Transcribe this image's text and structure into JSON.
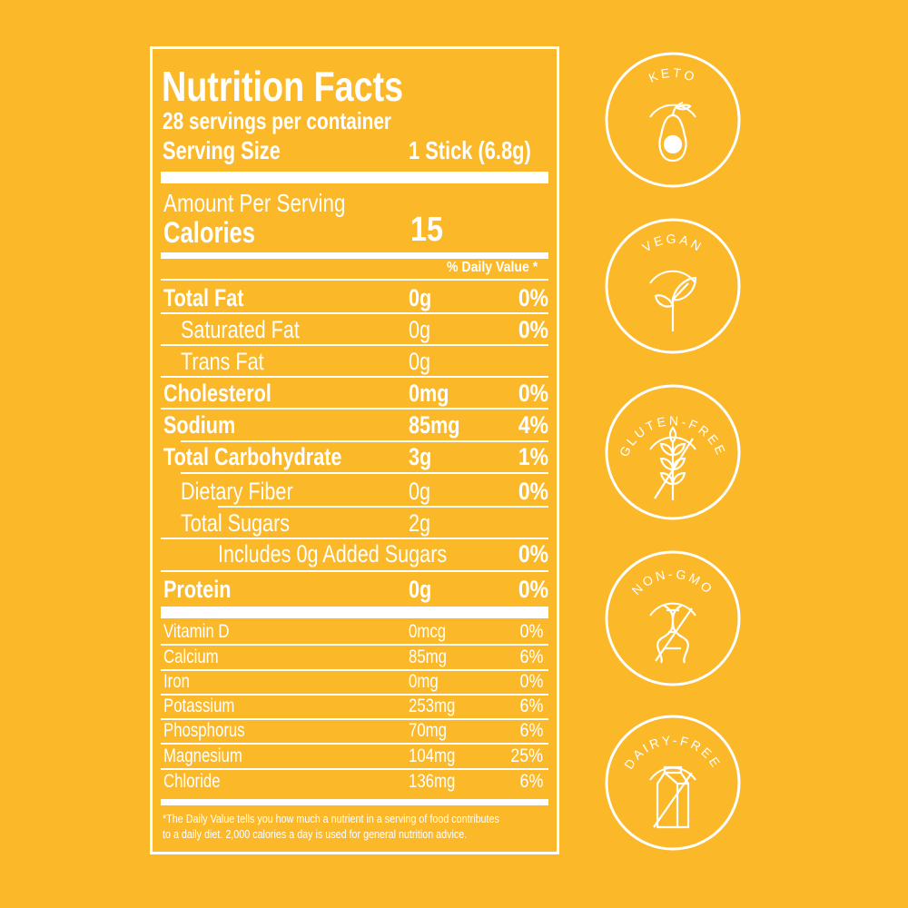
{
  "colors": {
    "background": "#FBB829",
    "foreground": "#FFFFFF"
  },
  "label": {
    "title": "Nutrition Facts",
    "servings": "28 servings per container",
    "serving_size_label": "Serving Size",
    "serving_size_value": "1 Stick (6.8g)",
    "amount_per_serving": "Amount Per Serving",
    "calories_label": "Calories",
    "calories_value": "15",
    "dv_header": "% Daily Value *",
    "nutrients": [
      {
        "name": "Total Fat",
        "amount": "0g",
        "dv": "0%"
      },
      {
        "name": "Saturated Fat",
        "amount": "0g",
        "dv": "0%"
      },
      {
        "name": "Trans Fat",
        "amount": "0g",
        "dv": ""
      },
      {
        "name": "Cholesterol",
        "amount": "0mg",
        "dv": "0%"
      },
      {
        "name": "Sodium",
        "amount": "85mg",
        "dv": "4%"
      },
      {
        "name": "Total Carbohydrate",
        "amount": "3g",
        "dv": "1%"
      },
      {
        "name": "Dietary Fiber",
        "amount": "0g",
        "dv": "0%"
      },
      {
        "name": "Total Sugars",
        "amount": "2g",
        "dv": ""
      },
      {
        "name": "Includes 0g Added Sugars",
        "amount": "",
        "dv": "0%"
      },
      {
        "name": "Protein",
        "amount": "0g",
        "dv": "0%"
      }
    ],
    "minerals": [
      {
        "name": "Vitamin D",
        "amount": "0mcg",
        "dv": "0%"
      },
      {
        "name": "Calcium",
        "amount": "85mg",
        "dv": "6%"
      },
      {
        "name": "Iron",
        "amount": "0mg",
        "dv": "0%"
      },
      {
        "name": "Potassium",
        "amount": "253mg",
        "dv": "6%"
      },
      {
        "name": "Phosphorus",
        "amount": "70mg",
        "dv": "6%"
      },
      {
        "name": "Magnesium",
        "amount": "104mg",
        "dv": "25%"
      },
      {
        "name": "Chloride",
        "amount": "136mg",
        "dv": "6%"
      }
    ],
    "footnote_line1": "*The Daily Value tells you how much a nutrient in a serving of food contributes",
    "footnote_line2": "to a daily diet. 2,000 calories a day is used for general nutrition advice."
  },
  "badges": [
    {
      "label": "KETO",
      "icon": "avocado-icon"
    },
    {
      "label": "VEGAN",
      "icon": "sprout-icon"
    },
    {
      "label": "GLUTEN-FREE",
      "icon": "wheat-crossed-icon"
    },
    {
      "label": "NON-GMO",
      "icon": "dna-crossed-icon"
    },
    {
      "label": "DAIRY-FREE",
      "icon": "milk-carton-crossed-icon"
    }
  ]
}
